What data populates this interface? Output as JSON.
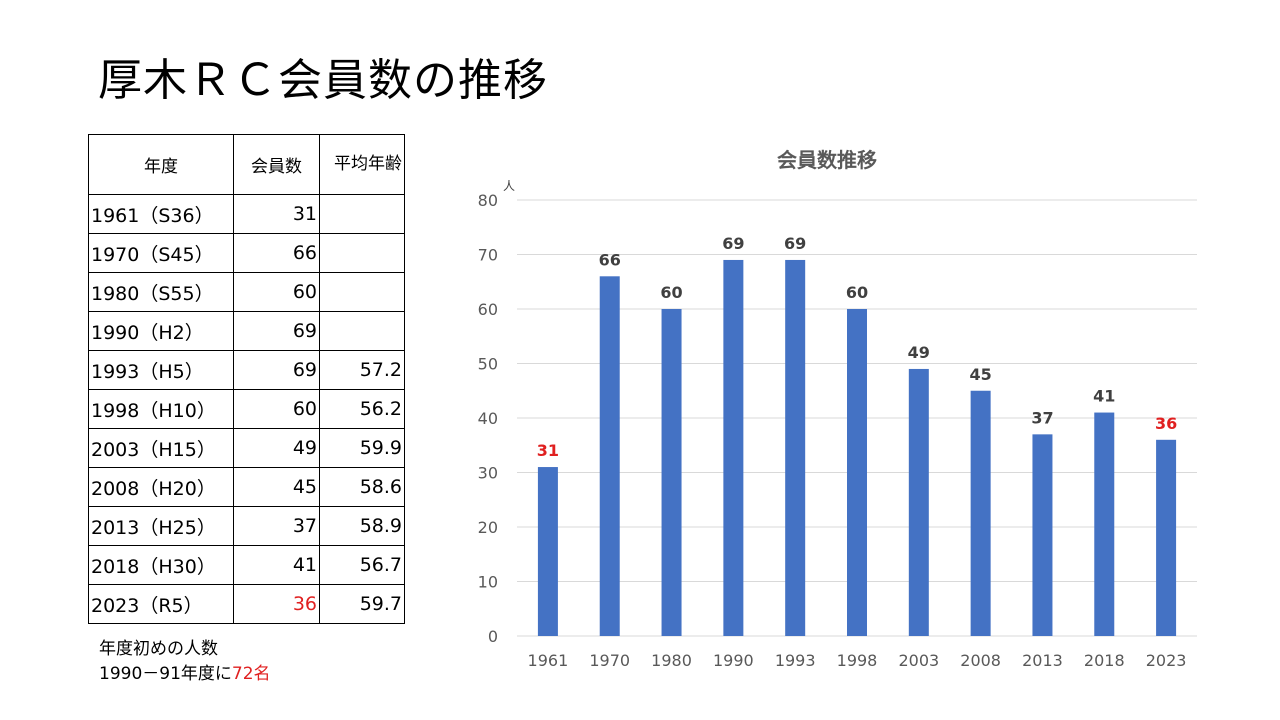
{
  "title": "厚木ＲＣ会員数の推移",
  "table": {
    "headers": [
      "年度",
      "会員数",
      "平均年齢"
    ],
    "rows": [
      {
        "year": "1961（S36）",
        "members": "31",
        "avg_age": ""
      },
      {
        "year": "1970（S45）",
        "members": "66",
        "avg_age": ""
      },
      {
        "year": "1980（S55）",
        "members": "60",
        "avg_age": ""
      },
      {
        "year": "1990（H2）",
        "members": "69",
        "avg_age": ""
      },
      {
        "year": "1993（H5）",
        "members": "69",
        "avg_age": "57.2"
      },
      {
        "year": "1998（H10）",
        "members": "60",
        "avg_age": "56.2"
      },
      {
        "year": "2003（H15）",
        "members": "49",
        "avg_age": "59.9"
      },
      {
        "year": "2008（H20）",
        "members": "45",
        "avg_age": "58.6"
      },
      {
        "year": "2013（H25）",
        "members": "37",
        "avg_age": "58.9"
      },
      {
        "year": "2018（H30）",
        "members": "41",
        "avg_age": "56.7"
      },
      {
        "year": "2023（R5）",
        "members": "36",
        "avg_age": "59.7",
        "highlight": true
      }
    ]
  },
  "note": {
    "line1": "年度初めの人数",
    "line2_prefix": "1990－91年度に",
    "line2_highlight": "72名"
  },
  "chart_data": {
    "type": "bar",
    "title": "会員数推移",
    "ylabel_unit": "人",
    "categories": [
      "1961",
      "1970",
      "1980",
      "1990",
      "1993",
      "1998",
      "2003",
      "2008",
      "2013",
      "2018",
      "2023"
    ],
    "values": [
      31,
      66,
      60,
      69,
      69,
      60,
      49,
      45,
      37,
      41,
      36
    ],
    "highlight_indices": [
      0,
      10
    ],
    "ylim": [
      0,
      80
    ],
    "yticks": [
      0,
      10,
      20,
      30,
      40,
      50,
      60,
      70,
      80
    ],
    "grid": true,
    "colors": {
      "bar": "#4472c4",
      "highlight_label": "#e02020",
      "grid": "#d9d9d9"
    }
  }
}
